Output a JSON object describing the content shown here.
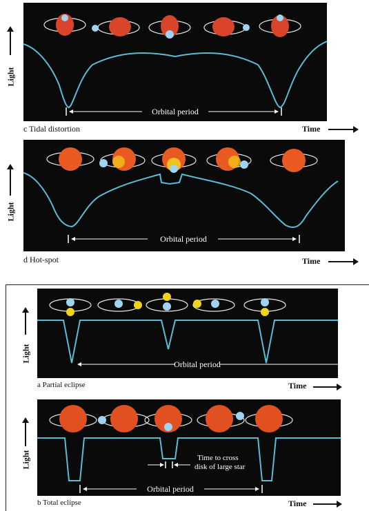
{
  "panels": {
    "c": {
      "caption": "c  Tidal distortion",
      "period_label": "Orbital period",
      "y_label": "Light",
      "x_label": "Time"
    },
    "d": {
      "caption": "d  Hot-spot",
      "period_label": "Orbital period",
      "y_label": "Light",
      "x_label": "Time"
    },
    "a": {
      "caption": "a  Partial eclipse",
      "period_label": "Orbital period",
      "y_label": "Light",
      "x_label": "Time"
    },
    "b": {
      "caption": "b  Total eclipse",
      "period_label": "Orbital period",
      "y_label": "Light",
      "x_label": "Time",
      "annotation_line1": "Time to cross",
      "annotation_line2": "disk of large star"
    }
  },
  "colors": {
    "background": "#0a0a0a",
    "light_curve": "#5bbcd6",
    "red_star": "#d8452a",
    "blue_star": "#9fd3ef",
    "yellow_star": "#f2d31c",
    "orbit": "#e8e8e8"
  }
}
